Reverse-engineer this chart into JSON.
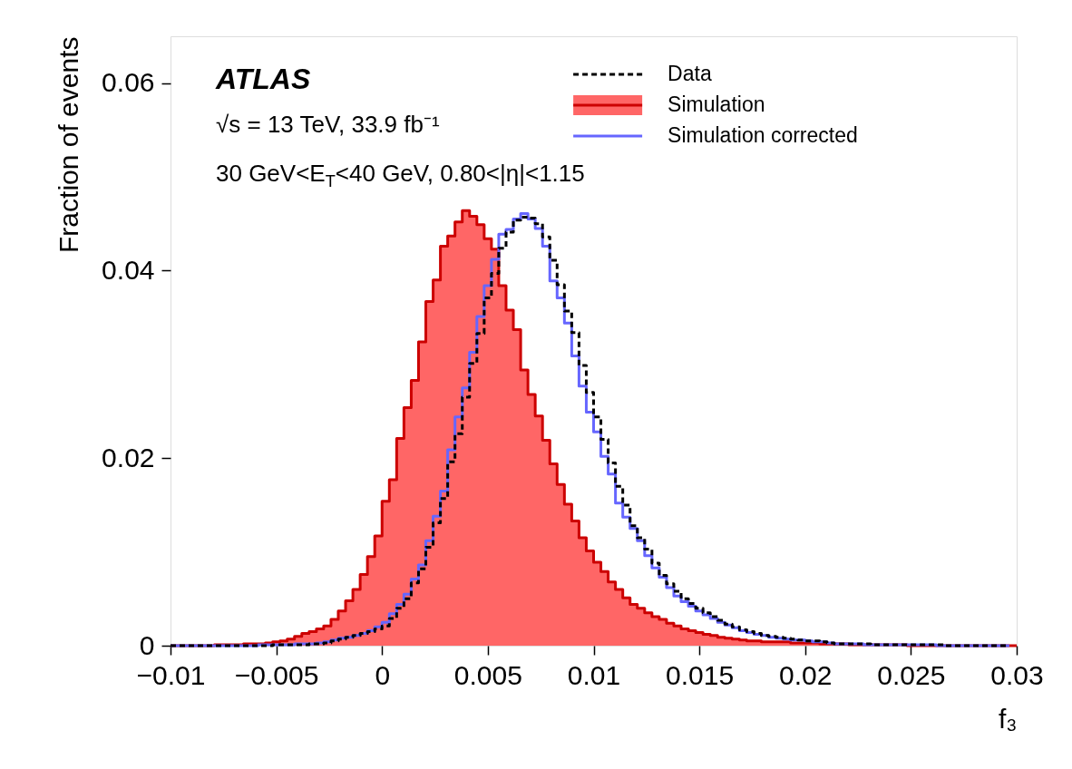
{
  "chart_data": {
    "type": "histogram",
    "xlabel": "f₃",
    "ylabel": "Fraction of events",
    "annotations": [
      "ATLAS",
      "√s = 13 TeV, 33.9 fb⁻¹",
      "30 GeV<E$_{T}$<40 GeV, 0.80<|η|<1.15"
    ],
    "xlim": [
      -0.01,
      0.03
    ],
    "ylim": [
      0,
      0.065
    ],
    "xticks": [
      {
        "value": -0.01,
        "label": "−0.01"
      },
      {
        "value": -0.005,
        "label": "−0.005"
      },
      0,
      0.005,
      0.01,
      0.015,
      0.02,
      0.025,
      0.03
    ],
    "yticks": [
      0,
      0.02,
      0.04,
      0.06
    ],
    "grid": false,
    "legend": "top right",
    "bins": [
      -0.01,
      -0.009655,
      -0.00931,
      -0.008966,
      -0.008621,
      -0.008276,
      -0.007931,
      -0.007586,
      -0.007241,
      -0.006897,
      -0.006552,
      -0.006207,
      -0.005862,
      -0.005517,
      -0.005172,
      -0.004828,
      -0.004483,
      -0.004138,
      -0.003793,
      -0.003448,
      -0.003103,
      -0.002759,
      -0.002414,
      -0.002069,
      -0.001724,
      -0.001379,
      -0.001034,
      -0.00069,
      -0.000345,
      0,
      0.000345,
      0.00069,
      0.001034,
      0.001379,
      0.001724,
      0.002069,
      0.002414,
      0.002759,
      0.003103,
      0.003448,
      0.003793,
      0.004138,
      0.004483,
      0.004828,
      0.005172,
      0.005517,
      0.005862,
      0.006207,
      0.006552,
      0.006897,
      0.007241,
      0.007586,
      0.007931,
      0.008276,
      0.008621,
      0.008966,
      0.00931,
      0.009655,
      0.01,
      0.010345,
      0.01069,
      0.011034,
      0.011379,
      0.011724,
      0.012069,
      0.012414,
      0.012759,
      0.013103,
      0.013448,
      0.013793,
      0.014138,
      0.014483,
      0.014828,
      0.015172,
      0.015517,
      0.015862,
      0.016207,
      0.016552,
      0.016897,
      0.017241,
      0.017586,
      0.017931,
      0.018276,
      0.018621,
      0.018966,
      0.01931,
      0.019655,
      0.02,
      0.020345,
      0.02069,
      0.021034,
      0.021379,
      0.021724,
      0.022069,
      0.022414,
      0.022759,
      0.023103,
      0.023448,
      0.023793,
      0.024138,
      0.024483,
      0.024828,
      0.025172,
      0.025517,
      0.025862,
      0.026207,
      0.026552,
      0.026897,
      0.027241,
      0.027586,
      0.027931,
      0.028276,
      0.028621,
      0.028966,
      0.02931,
      0.029655,
      0.03
    ],
    "series": [
      {
        "name": "Data",
        "color": "#000000",
        "type": "step",
        "line_style": "dashed",
        "x": [
          -0.01,
          -0.009655,
          -0.00931,
          -0.008966,
          -0.008621,
          -0.008276,
          -0.007931,
          -0.007586,
          -0.007241,
          -0.006897,
          -0.006552,
          -0.006207,
          -0.005862,
          -0.005517,
          -0.005172,
          -0.004828,
          -0.004483,
          -0.004138,
          -0.003793,
          -0.003448,
          -0.003103,
          -0.002759,
          -0.002414,
          -0.002069,
          -0.001724,
          -0.001379,
          -0.001034,
          -0.00069,
          -0.000345,
          0,
          0.000345,
          0.00069,
          0.001034,
          0.001379,
          0.001724,
          0.002069,
          0.002414,
          0.002759,
          0.003103,
          0.003448,
          0.003793,
          0.004138,
          0.004483,
          0.004828,
          0.005172,
          0.005517,
          0.005862,
          0.006207,
          0.006552,
          0.006897,
          0.007241,
          0.007586,
          0.007931,
          0.008276,
          0.008621,
          0.008966,
          0.00931,
          0.009655,
          0.01,
          0.010345,
          0.01069,
          0.011034,
          0.011379,
          0.011724,
          0.012069,
          0.012414,
          0.012759,
          0.013103,
          0.013448,
          0.013793,
          0.014138,
          0.014483,
          0.014828,
          0.015172,
          0.015517,
          0.015862,
          0.016207,
          0.016552,
          0.016897,
          0.017241,
          0.017586,
          0.017931,
          0.018276,
          0.018621,
          0.018966,
          0.01931,
          0.019655,
          0.02,
          0.020345,
          0.02069,
          0.021034,
          0.021379,
          0.021724,
          0.022069,
          0.022414,
          0.022759,
          0.023103,
          0.023448,
          0.023793,
          0.024138,
          0.024483,
          0.024828,
          0.025172,
          0.025517,
          0.025862,
          0.026207,
          0.026552,
          0.026897,
          0.027241,
          0.027586,
          0.027931,
          0.028276,
          0.028621,
          0.028966,
          0.02931,
          0.029655
        ],
        "values": [
          0,
          0,
          0,
          0,
          0,
          0,
          0,
          0,
          0,
          0,
          0,
          0,
          0,
          0,
          0.0001,
          0.0001,
          0.0001,
          0.0001,
          0.0001,
          0.0002,
          0.0002,
          0.0003,
          0.0005,
          0.0007,
          0.0009,
          0.0011,
          0.0013,
          0.0015,
          0.0018,
          0.0021,
          0.0029,
          0.004,
          0.005,
          0.0067,
          0.0082,
          0.0105,
          0.0131,
          0.0157,
          0.0196,
          0.0226,
          0.0265,
          0.0301,
          0.0333,
          0.0371,
          0.0397,
          0.0424,
          0.0441,
          0.0454,
          0.0457,
          0.0456,
          0.045,
          0.0436,
          0.0411,
          0.0385,
          0.0357,
          0.0334,
          0.0299,
          0.027,
          0.0244,
          0.022,
          0.0195,
          0.017,
          0.015,
          0.0128,
          0.0115,
          0.0103,
          0.0088,
          0.0075,
          0.0066,
          0.0058,
          0.005,
          0.0045,
          0.004,
          0.0035,
          0.0031,
          0.0027,
          0.0023,
          0.002,
          0.0017,
          0.0015,
          0.0013,
          0.0011,
          0.001,
          0.0009,
          0.0008,
          0.0007,
          0.0006,
          0.0005,
          0.0005,
          0.0004,
          0.0003,
          0.0002,
          0.0002,
          0.0002,
          0.0002,
          0.0002,
          0.0001,
          0.0001,
          0.0001,
          0.0001,
          0.0001,
          0.0001,
          0.0001,
          0.0001,
          0.0001,
          0.0001,
          0,
          0,
          0,
          0,
          0,
          0,
          0,
          0,
          0,
          0
        ]
      },
      {
        "name": "Simulation",
        "color": "#ff6666",
        "values": [
          0,
          0,
          0,
          0,
          0,
          0,
          0.0001,
          0.0001,
          0.0001,
          0.0001,
          0.0002,
          0.0002,
          0.0002,
          0.0003,
          0.0004,
          0.0005,
          0.0007,
          0.001,
          0.0013,
          0.0015,
          0.0018,
          0.0021,
          0.0028,
          0.0037,
          0.0048,
          0.006,
          0.0076,
          0.0095,
          0.0117,
          0.0154,
          0.0177,
          0.0221,
          0.0254,
          0.0283,
          0.0324,
          0.0367,
          0.039,
          0.0426,
          0.0437,
          0.0452,
          0.0464,
          0.0458,
          0.0449,
          0.0434,
          0.0423,
          0.0384,
          0.0358,
          0.0337,
          0.0294,
          0.0268,
          0.0245,
          0.0219,
          0.0194,
          0.0172,
          0.0151,
          0.0133,
          0.0115,
          0.0101,
          0.0089,
          0.0079,
          0.0068,
          0.006,
          0.0051,
          0.0044,
          0.004,
          0.0035,
          0.0031,
          0.0028,
          0.0024,
          0.0021,
          0.0018,
          0.0016,
          0.0014,
          0.0012,
          0.0011,
          0.0009,
          0.0008,
          0.0007,
          0.0006,
          0.0005,
          0.0005,
          0.0004,
          0.0004,
          0.0004,
          0.0004,
          0.0003,
          0.0003,
          0.0003,
          0.0003,
          0.0002,
          0.0002,
          0.0002,
          0.0002,
          0.0001,
          0.0001,
          0.0001,
          0.0001,
          0.0001,
          0.0001,
          0.0001,
          0.0001,
          0,
          0,
          0,
          0,
          0,
          0,
          0,
          0,
          0,
          0,
          0,
          0,
          0,
          0,
          0
        ]
      },
      {
        "name": "Simulation corrected",
        "color": "#6666ff",
        "type": "step",
        "x": [
          -0.01,
          -0.009655,
          -0.00931,
          -0.008966,
          -0.008621,
          -0.008276,
          -0.007931,
          -0.007586,
          -0.007241,
          -0.006897,
          -0.006552,
          -0.006207,
          -0.005862,
          -0.005517,
          -0.005172,
          -0.004828,
          -0.004483,
          -0.004138,
          -0.003793,
          -0.003448,
          -0.003103,
          -0.002759,
          -0.002414,
          -0.002069,
          -0.001724,
          -0.001379,
          -0.001034,
          -0.00069,
          -0.000345,
          0,
          0.000345,
          0.00069,
          0.001034,
          0.001379,
          0.001724,
          0.002069,
          0.002414,
          0.002759,
          0.003103,
          0.003448,
          0.003793,
          0.004138,
          0.004483,
          0.004828,
          0.005172,
          0.005517,
          0.005862,
          0.006207,
          0.006552,
          0.006897,
          0.007241,
          0.007586,
          0.007931,
          0.008276,
          0.008621,
          0.008966,
          0.00931,
          0.009655,
          0.01,
          0.010345,
          0.01069,
          0.011034,
          0.011379,
          0.011724,
          0.012069,
          0.012414,
          0.012759,
          0.013103,
          0.013448,
          0.013793,
          0.014138,
          0.014483,
          0.014828,
          0.015172,
          0.015517,
          0.015862,
          0.016207,
          0.016552,
          0.016897,
          0.017241,
          0.017586,
          0.017931,
          0.018276,
          0.018621,
          0.018966,
          0.01931,
          0.019655,
          0.02,
          0.020345,
          0.02069,
          0.021034,
          0.021379,
          0.021724,
          0.022069,
          0.022414,
          0.022759,
          0.023103,
          0.023448,
          0.023793,
          0.024138,
          0.024483,
          0.024828,
          0.025172,
          0.025517,
          0.025862,
          0.026207,
          0.026552,
          0.026897,
          0.027241,
          0.027586,
          0.027931,
          0.028276,
          0.028621,
          0.028966,
          0.02931,
          0.029655
        ],
        "values": [
          0,
          0,
          0,
          0,
          0,
          0,
          0,
          0,
          0,
          0,
          0,
          0,
          0.0001,
          0.0001,
          0.0001,
          0.0001,
          0.0001,
          0.0002,
          0.0002,
          0.0002,
          0.0003,
          0.0004,
          0.0006,
          0.0008,
          0.0009,
          0.0011,
          0.0013,
          0.0016,
          0.002,
          0.0025,
          0.0034,
          0.0044,
          0.0055,
          0.0071,
          0.0086,
          0.0112,
          0.0138,
          0.0165,
          0.0209,
          0.0244,
          0.0275,
          0.0313,
          0.0351,
          0.0384,
          0.0412,
          0.0439,
          0.0444,
          0.0455,
          0.0461,
          0.0455,
          0.0445,
          0.0426,
          0.0389,
          0.0371,
          0.0344,
          0.0309,
          0.0277,
          0.0249,
          0.0228,
          0.0202,
          0.0183,
          0.0152,
          0.0137,
          0.0125,
          0.0112,
          0.0096,
          0.0083,
          0.0073,
          0.0062,
          0.0053,
          0.0047,
          0.0042,
          0.0037,
          0.0033,
          0.0029,
          0.0025,
          0.0022,
          0.0019,
          0.0016,
          0.0014,
          0.0012,
          0.0011,
          0.0009,
          0.0008,
          0.0007,
          0.0006,
          0.0006,
          0.0005,
          0.0004,
          0.0004,
          0.0003,
          0.0002,
          0.0002,
          0.0002,
          0.0002,
          0.0001,
          0.0001,
          0.0001,
          0.0001,
          0.0001,
          0.0001,
          0.0001,
          0.0001,
          0.0001,
          0.0001,
          0,
          0,
          0,
          0,
          0,
          0,
          0,
          0,
          0,
          0,
          0
        ]
      }
    ]
  }
}
